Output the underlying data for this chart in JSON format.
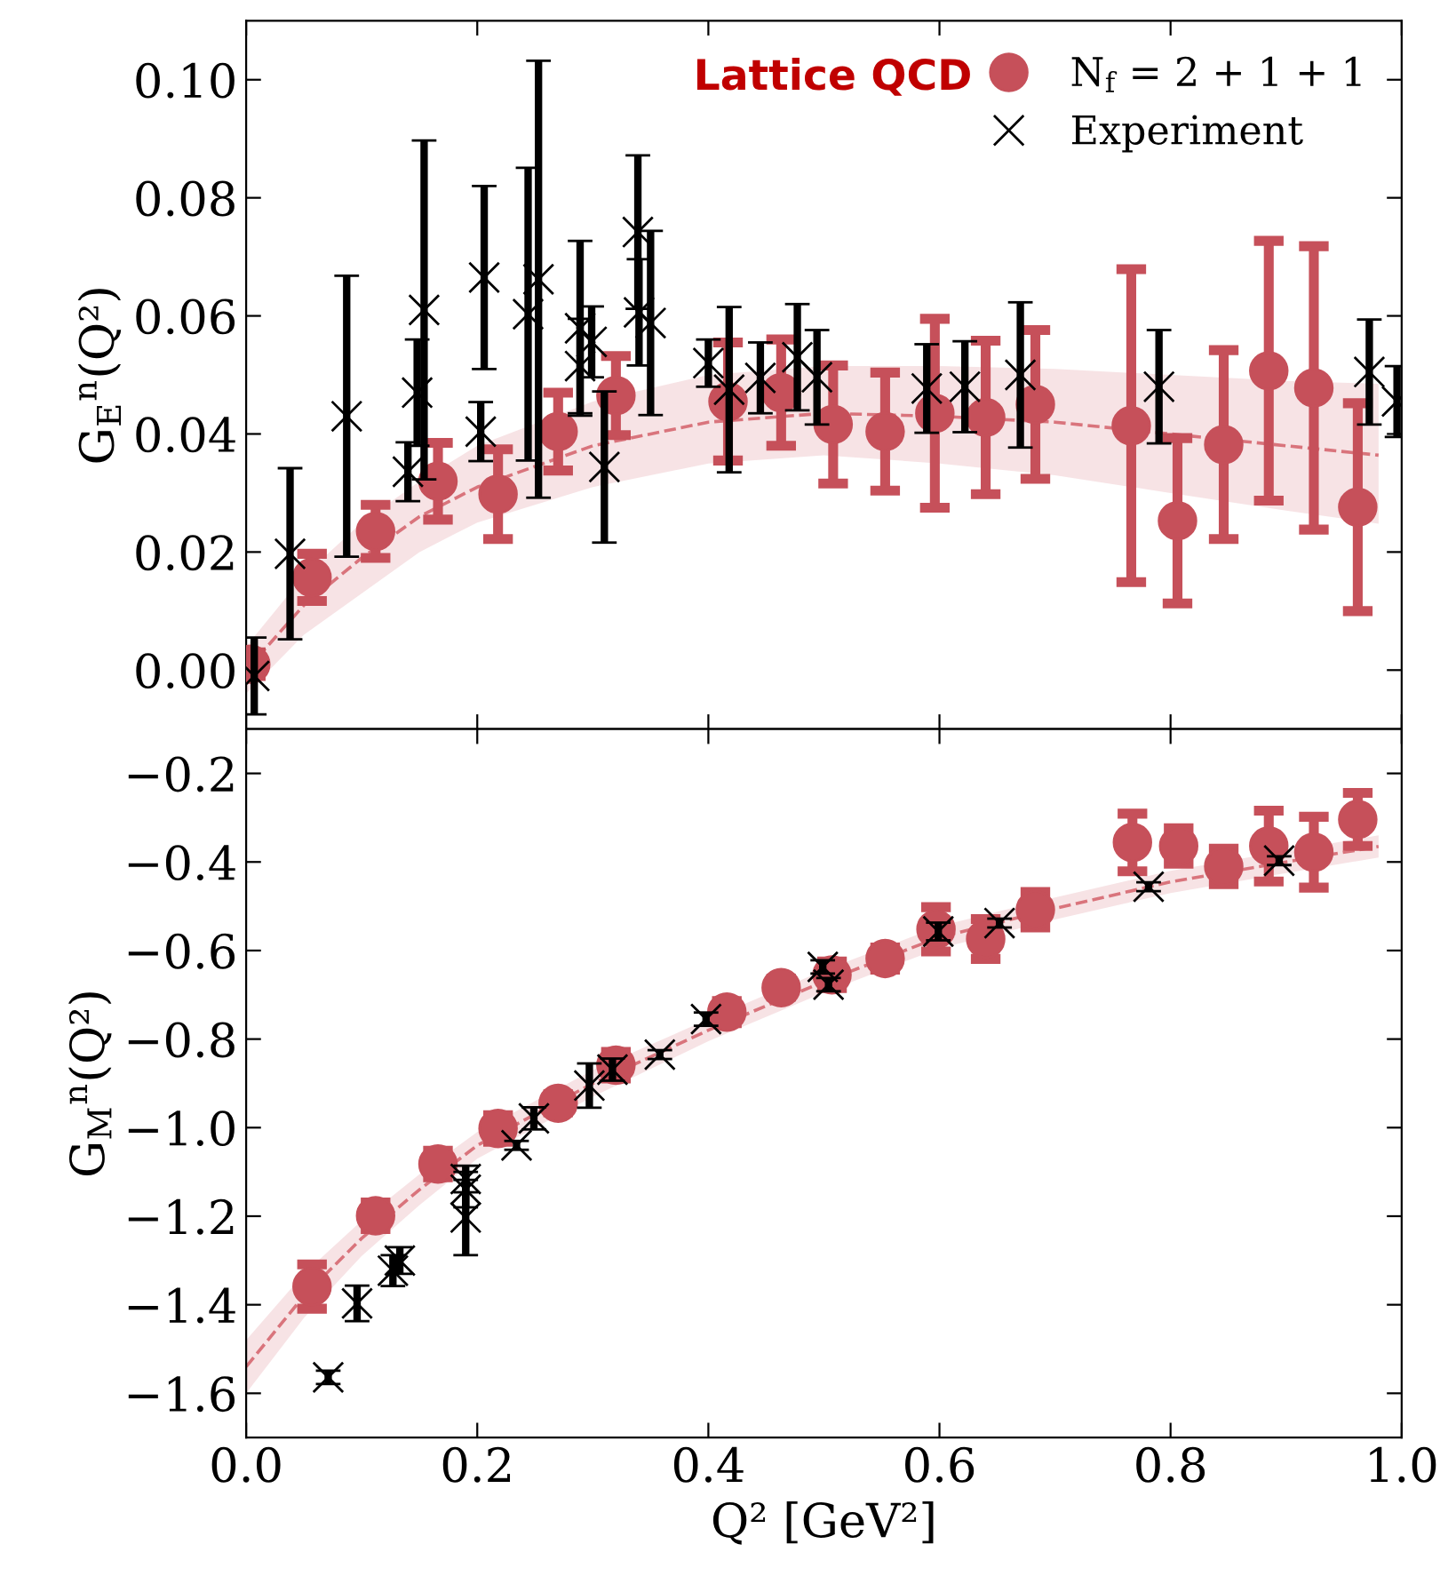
{
  "chart_data": [
    {
      "type": "scatter",
      "ylabel": "G$_{E}$$^{n}$(Q²)",
      "legend_title": "Lattice QCD",
      "legend": "top right",
      "tick_labels": "y",
      "xlim": [
        0.0,
        1.0
      ],
      "xticks": [
        {
          "value": 0.0,
          "label": null
        },
        {
          "value": 0.2,
          "label": null
        },
        {
          "value": 0.4,
          "label": null
        },
        {
          "value": 0.6,
          "label": null
        },
        {
          "value": 0.8,
          "label": null
        },
        {
          "value": 1.0,
          "label": null
        }
      ],
      "ylim": [
        -0.01,
        0.11
      ],
      "yticks": [
        {
          "value": 0.0,
          "label": "0.00"
        },
        {
          "value": 0.02,
          "label": "0.02"
        },
        {
          "value": 0.04,
          "label": "0.04"
        },
        {
          "value": 0.06,
          "label": "0.06"
        },
        {
          "value": 0.08,
          "label": "0.08"
        },
        {
          "value": 0.1,
          "label": "0.10"
        }
      ],
      "series": [
        {
          "type": "line",
          "color": "#d9747c",
          "line_style": "dashed",
          "x": [
            0,
            0.05,
            0.1,
            0.15,
            0.2,
            0.3,
            0.4,
            0.5,
            0.6,
            0.7,
            0.8,
            0.9,
            0.98
          ],
          "values": [
            0.0,
            0.011,
            0.019,
            0.026,
            0.031,
            0.038,
            0.042,
            0.0435,
            0.043,
            0.042,
            0.04,
            0.038,
            0.0364
          ],
          "upper": [
            0.004,
            0.016,
            0.025,
            0.032,
            0.038,
            0.0455,
            0.05,
            0.0515,
            0.0515,
            0.051,
            0.05,
            0.049,
            0.0485
          ],
          "lower": [
            -0.004,
            0.006,
            0.013,
            0.02,
            0.025,
            0.031,
            0.035,
            0.0364,
            0.035,
            0.033,
            0.03,
            0.027,
            0.0248
          ]
        },
        {
          "name": "Experiment",
          "marker": "cross",
          "color": "#000000",
          "x": [
            0.007,
            0.038,
            0.087,
            0.14,
            0.148,
            0.154,
            0.203,
            0.206,
            0.244,
            0.253,
            0.289,
            0.289,
            0.299,
            0.31,
            0.339,
            0.34,
            0.35,
            0.4,
            0.418,
            0.445,
            0.477,
            0.494,
            0.589,
            0.622,
            0.67,
            0.79,
            0.972,
            0.996
          ],
          "values": [
            -0.001,
            0.0197,
            0.043,
            0.0336,
            0.047,
            0.061,
            0.0404,
            0.0665,
            0.0603,
            0.0662,
            0.0579,
            0.0515,
            0.0556,
            0.0344,
            0.0742,
            0.0606,
            0.0588,
            0.052,
            0.0475,
            0.0495,
            0.053,
            0.0496,
            0.0477,
            0.048,
            0.05,
            0.048,
            0.0505,
            0.0455
          ],
          "errors": [
            0.0065,
            0.0145,
            0.0238,
            0.005,
            0.009,
            0.0287,
            0.005,
            0.0155,
            0.0248,
            0.037,
            0.0148,
            0.008,
            0.006,
            0.0128,
            0.013,
            0.009,
            0.0156,
            0.004,
            0.014,
            0.006,
            0.009,
            0.008,
            0.0075,
            0.0077,
            0.0123,
            0.0096,
            0.0089,
            0.006
          ]
        },
        {
          "name": "N$_{f}$ = 2 + 1 + 1",
          "marker": "circle",
          "color": "#c6505a",
          "x": [
            0.004,
            0.057,
            0.112,
            0.166,
            0.218,
            0.27,
            0.32,
            0.417,
            0.463,
            0.508,
            0.553,
            0.596,
            0.64,
            0.683,
            0.766,
            0.806,
            0.846,
            0.885,
            0.924,
            0.962
          ],
          "values": [
            0.001,
            0.0157,
            0.0235,
            0.032,
            0.0298,
            0.0404,
            0.0465,
            0.0455,
            0.047,
            0.0416,
            0.0404,
            0.0435,
            0.0428,
            0.045,
            0.0414,
            0.0253,
            0.0382,
            0.0507,
            0.0478,
            0.0276
          ],
          "errors": [
            0.002,
            0.004,
            0.0045,
            0.0065,
            0.0076,
            0.0066,
            0.0067,
            0.01,
            0.009,
            0.01,
            0.01,
            0.016,
            0.013,
            0.0126,
            0.0265,
            0.014,
            0.016,
            0.022,
            0.024,
            0.0176
          ]
        }
      ]
    },
    {
      "type": "scatter",
      "ylabel": "G$_{M}$$^{n}$(Q²)",
      "xlabel": "Q² [GeV²]",
      "xlim": [
        0.0,
        1.0
      ],
      "xticks": [
        {
          "value": 0.0,
          "label": "0.0"
        },
        {
          "value": 0.2,
          "label": "0.2"
        },
        {
          "value": 0.4,
          "label": "0.4"
        },
        {
          "value": 0.6,
          "label": "0.6"
        },
        {
          "value": 0.8,
          "label": "0.8"
        },
        {
          "value": 1.0,
          "label": "1.0"
        }
      ],
      "ylim": [
        -1.7,
        -0.1
      ],
      "yticks": [
        {
          "value": -1.6,
          "label": "−1.6"
        },
        {
          "value": -1.4,
          "label": "−1.4"
        },
        {
          "value": -1.2,
          "label": "−1.2"
        },
        {
          "value": -1.0,
          "label": "−1.0"
        },
        {
          "value": -0.8,
          "label": "−0.8"
        },
        {
          "value": -0.6,
          "label": "−0.6"
        },
        {
          "value": -0.4,
          "label": "−0.4"
        },
        {
          "value": -0.2,
          "label": "−0.2"
        }
      ],
      "series": [
        {
          "type": "line",
          "color": "#d9747c",
          "line_style": "dashed",
          "x": [
            0,
            0.05,
            0.1,
            0.15,
            0.2,
            0.3,
            0.4,
            0.5,
            0.6,
            0.7,
            0.8,
            0.9,
            0.98
          ],
          "values": [
            -1.54,
            -1.38,
            -1.25,
            -1.14,
            -1.04,
            -0.9,
            -0.78,
            -0.67,
            -0.57,
            -0.505,
            -0.445,
            -0.4,
            -0.365
          ],
          "upper": [
            -1.48,
            -1.33,
            -1.21,
            -1.105,
            -1.01,
            -0.87,
            -0.755,
            -0.645,
            -0.545,
            -0.48,
            -0.42,
            -0.375,
            -0.34
          ],
          "lower": [
            -1.6,
            -1.43,
            -1.29,
            -1.175,
            -1.07,
            -0.93,
            -0.805,
            -0.695,
            -0.595,
            -0.53,
            -0.47,
            -0.425,
            -0.39
          ]
        },
        {
          "marker": "cross",
          "color": "#000000",
          "x": [
            0.071,
            0.096,
            0.127,
            0.133,
            0.19,
            0.19,
            0.19,
            0.234,
            0.249,
            0.297,
            0.317,
            0.358,
            0.398,
            0.499,
            0.504,
            0.599,
            0.652,
            0.781,
            0.894
          ],
          "values": [
            -1.564,
            -1.397,
            -1.323,
            -1.3,
            -1.116,
            -1.14,
            -1.203,
            -1.04,
            -0.979,
            -0.905,
            -0.869,
            -0.835,
            -0.755,
            -0.637,
            -0.677,
            -0.557,
            -0.538,
            -0.456,
            -0.397
          ],
          "errors": [
            0.015,
            0.04,
            0.035,
            0.03,
            0.03,
            0.04,
            0.085,
            0.01,
            0.025,
            0.05,
            0.025,
            0.01,
            0.015,
            0.015,
            0.015,
            0.02,
            0.01,
            0.01,
            0.01
          ]
        },
        {
          "marker": "circle",
          "color": "#c6505a",
          "x": [
            0.057,
            0.112,
            0.166,
            0.218,
            0.27,
            0.32,
            0.416,
            0.463,
            0.507,
            0.553,
            0.597,
            0.64,
            0.683,
            0.767,
            0.807,
            0.846,
            0.885,
            0.924,
            0.962
          ],
          "values": [
            -1.359,
            -1.199,
            -1.082,
            -1.002,
            -0.945,
            -0.859,
            -0.739,
            -0.684,
            -0.655,
            -0.618,
            -0.552,
            -0.574,
            -0.508,
            -0.356,
            -0.364,
            -0.41,
            -0.364,
            -0.378,
            -0.304
          ],
          "errors": [
            0.05,
            0.03,
            0.03,
            0.03,
            0.02,
            0.03,
            0.025,
            0.02,
            0.03,
            0.025,
            0.05,
            0.045,
            0.04,
            0.065,
            0.04,
            0.04,
            0.08,
            0.08,
            0.06
          ]
        }
      ]
    }
  ]
}
